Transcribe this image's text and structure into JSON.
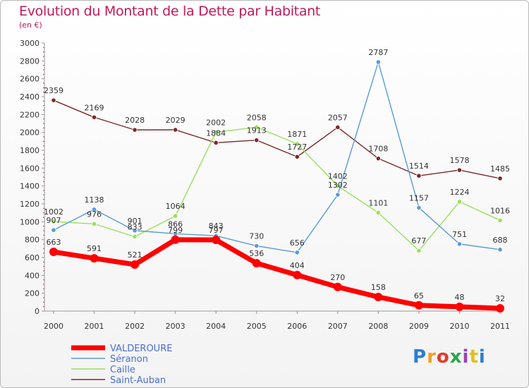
{
  "title": "Evolution du Montant de la Dette par Habitant",
  "subtitle": "(en €)",
  "logo_text": "Proxiti",
  "chart_data": {
    "type": "line",
    "title": "Evolution du Montant de la Dette par Habitant",
    "subtitle": "(en €)",
    "categories": [
      "2000",
      "2001",
      "2002",
      "2003",
      "2004",
      "2005",
      "2006",
      "2007",
      "2008",
      "2009",
      "2010",
      "2011"
    ],
    "ylim": [
      0,
      3000
    ],
    "yticks": [
      0,
      200,
      400,
      600,
      800,
      1000,
      1200,
      1400,
      1600,
      1800,
      2000,
      2200,
      2400,
      2600,
      2800,
      3000
    ],
    "grid": false,
    "legend_position": "bottom-left",
    "series": [
      {
        "name": "VALDEROURE",
        "color": "#ff0000",
        "values": [
          663,
          591,
          521,
          799,
          797,
          536,
          404,
          270,
          158,
          65,
          48,
          32
        ]
      },
      {
        "name": "Séranon",
        "color": "#5b9bd5",
        "values": [
          907,
          1138,
          901,
          866,
          843,
          730,
          656,
          1302,
          2787,
          1157,
          751,
          688
        ]
      },
      {
        "name": "Caille",
        "color": "#99e05c",
        "values": [
          1002,
          976,
          833,
          1064,
          2002,
          2058,
          1871,
          1402,
          1101,
          677,
          1224,
          1016
        ]
      },
      {
        "name": "Saint-Auban",
        "color": "#7b2929",
        "values": [
          2359,
          2169,
          2028,
          2029,
          1884,
          1913,
          1727,
          2057,
          1708,
          1514,
          1578,
          1485
        ]
      }
    ]
  }
}
